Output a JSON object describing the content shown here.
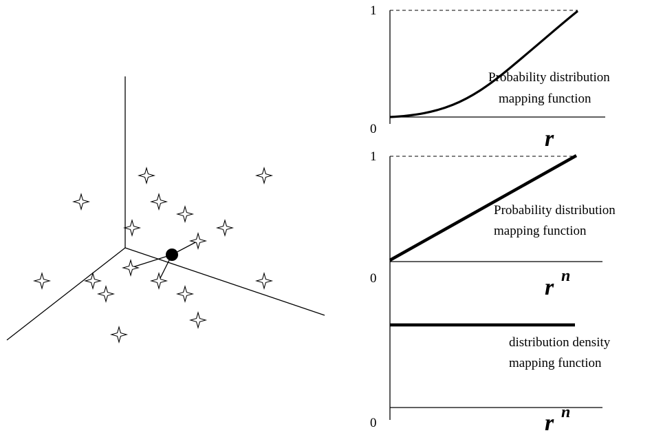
{
  "scatter_3d": {
    "points": 17,
    "query_point": "filled-dot",
    "neighbor_links": 3
  },
  "panel_top": {
    "tick_max": "1",
    "tick_zero": "0",
    "caption_line1": "Probability distribution",
    "caption_line2": "mapping function",
    "x_label": "r",
    "x_label_sup": ""
  },
  "panel_middle": {
    "tick_max": "1",
    "tick_zero": "0",
    "caption_line1": "Probability distribution",
    "caption_line2": "mapping function",
    "x_label": "r",
    "x_label_sup": "n"
  },
  "panel_bottom": {
    "tick_zero": "0",
    "caption_line1": "distribution density",
    "caption_line2": "mapping function",
    "x_label": "r",
    "x_label_sup": "n"
  }
}
